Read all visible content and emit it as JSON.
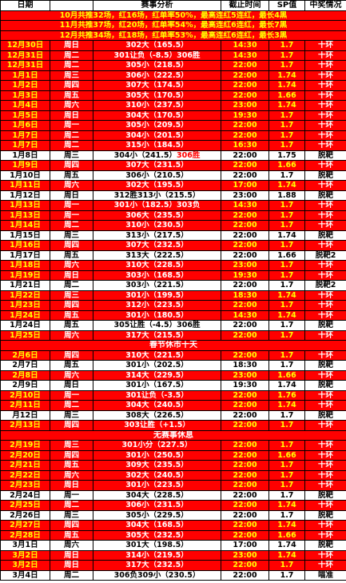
{
  "headers": [
    "日期",
    "",
    "赛事分析",
    "截止时间",
    "SP值",
    "中奖情况"
  ],
  "summaries": [
    "10月共推32场，红16场，红单率50%，最高连红5连红，最长4黑",
    "11月共推37场，红20场，红单率54%，最高连红6连红，最长7黑",
    "12月共推34场，红18场，红单率53%，最高连红6连红，最长3黑"
  ],
  "rows": [
    {
      "date": "12月30日",
      "day": "周日",
      "pick": "302大（165.5）",
      "time": "14:30",
      "sp": "1.7",
      "result": "十环",
      "hit": true
    },
    {
      "date": "12月31日",
      "day": "周二",
      "pick": "301让负（-8.5）306胜",
      "time": "14:30",
      "sp": "1.7",
      "result": "十环",
      "hit": true
    },
    {
      "date": "12月31日",
      "day": "周二",
      "pick": "305小（218.5）",
      "time": "22:00",
      "sp": "1.7",
      "result": "十环",
      "hit": true
    },
    {
      "date": "1月1日",
      "day": "周三",
      "pick": "306小（222.5）",
      "time": "22:00",
      "sp": "1.74",
      "result": "十环",
      "hit": true
    },
    {
      "date": "1月2日",
      "day": "周四",
      "pick": "307大（174.5）",
      "time": "22:00",
      "sp": "1.74",
      "result": "十环",
      "hit": true
    },
    {
      "date": "1月3日",
      "day": "周五",
      "pick": "305大（170.5）",
      "time": "22:00",
      "sp": "1.66",
      "result": "十环",
      "hit": true
    },
    {
      "date": "1月4日",
      "day": "周六",
      "pick": "310小（237.5）",
      "time": "23:00",
      "sp": "1.74",
      "result": "十环",
      "hit": true
    },
    {
      "date": "1月5日",
      "day": "周日",
      "pick": "304大（170.5）",
      "time": "19:30",
      "sp": "1.7",
      "result": "十环",
      "hit": true
    },
    {
      "date": "1月6日",
      "day": "周一",
      "pick": "305小（209.5）",
      "time": "22:00",
      "sp": "1.7",
      "result": "十环",
      "hit": true
    },
    {
      "date": "1月7日",
      "day": "周二",
      "pick": "304小（201.5）",
      "time": "22:00",
      "sp": "1.7",
      "result": "十环",
      "hit": true
    },
    {
      "date": "1月7日",
      "day": "周二",
      "pick": "315小（184.5）",
      "time": "16:30",
      "sp": "1.7",
      "result": "十环",
      "hit": true
    },
    {
      "date": "1月8日",
      "day": "周三",
      "pick": "304小（241.5）",
      "pickExtra": "306胜",
      "time": "22:00",
      "sp": "1.75",
      "result": "脱靶",
      "hit": false
    },
    {
      "date": "1月9日",
      "day": "周四",
      "pick": "307大（231.5）",
      "time": "22:00",
      "sp": "1.66",
      "result": "十环",
      "hit": true
    },
    {
      "date": "1月10日",
      "day": "周五",
      "pick": "306小（210.5）",
      "time": "22:00",
      "sp": "1.7",
      "result": "脱靶",
      "hit": false
    },
    {
      "date": "1月11日",
      "day": "周六",
      "pick": "302大（195.5）",
      "time": "17:00",
      "sp": "1.74",
      "result": "十环",
      "hit": true
    },
    {
      "date": "1月12日",
      "day": "周日",
      "pick": "312胜313小（215.5）",
      "time": "23:00",
      "sp": "1.88",
      "result": "脱靶",
      "hit": false
    },
    {
      "date": "1月13日",
      "day": "周一",
      "pick": "301小（182.5）303负",
      "time": "14:30",
      "sp": "1.7",
      "result": "十环",
      "hit": true
    },
    {
      "date": "1月13日",
      "day": "周一",
      "pick": "306大（235.5）",
      "time": "22:00",
      "sp": "1.7",
      "result": "十环",
      "hit": true
    },
    {
      "date": "1月14日",
      "day": "周二",
      "pick": "310小（230.5）",
      "time": "22:00",
      "sp": "1.7",
      "result": "十环",
      "hit": true
    },
    {
      "date": "1月15日",
      "day": "周三",
      "pick": "313小（217.5）",
      "time": "22:00",
      "sp": "1.74",
      "result": "脱靶",
      "hit": false
    },
    {
      "date": "1月16日",
      "day": "周四",
      "pick": "307大（232.5）",
      "time": "22:00",
      "sp": "1.7",
      "result": "十环",
      "hit": true
    },
    {
      "date": "1月17日",
      "day": "周五",
      "pick": "313大（222.5）",
      "time": "22:00",
      "sp": "1.66",
      "result": "脱靶2",
      "hit": false
    },
    {
      "date": "1月18日",
      "day": "周六",
      "pick": "310大（228.5）",
      "time": "23:00",
      "sp": "1.7",
      "result": "十环",
      "hit": true
    },
    {
      "date": "1月19日",
      "day": "周日",
      "pick": "303小（168.5）",
      "time": "19:30",
      "sp": "1.7",
      "result": "十环",
      "hit": true
    },
    {
      "date": "1月21日",
      "day": "周二",
      "pick": "303小（221.5）",
      "time": "22:00",
      "sp": "1.7",
      "result": "脱靶2",
      "hit": false
    },
    {
      "date": "1月22日",
      "day": "周三",
      "pick": "301小（199.5）",
      "time": "18:30",
      "sp": "1.74",
      "result": "十环",
      "hit": true
    },
    {
      "date": "1月23日",
      "day": "周四",
      "pick": "312小（223.5）",
      "time": "22:00",
      "sp": "1.7",
      "result": "十环",
      "hit": true
    },
    {
      "date": "1月24日",
      "day": "周五",
      "pick": "301小（180.5）",
      "time": "14:30",
      "sp": "1.74",
      "result": "十环",
      "hit": true
    },
    {
      "date": "1月24日",
      "day": "周五",
      "pick": "305让胜（-4.5）306胜",
      "time": "22:00",
      "sp": "1.7",
      "result": "脱靶",
      "hit": false
    },
    {
      "date": "1月25日",
      "day": "周六",
      "pick": "317大（215.5）",
      "time": "22:00",
      "sp": "1.7",
      "result": "十环",
      "hit": true
    },
    {
      "sep": "春节休市十天"
    },
    {
      "date": "2月6日",
      "day": "周四",
      "pick": "310大（221.5）",
      "time": "22:00",
      "sp": "1.7",
      "result": "十环",
      "hit": true
    },
    {
      "date": "2月7日",
      "day": "周五",
      "pick": "301小（202.5）",
      "time": "18:30",
      "sp": "1.7",
      "result": "脱靶",
      "hit": false
    },
    {
      "date": "2月8日",
      "day": "周六",
      "pick": "314大（229.5）",
      "time": "23:00",
      "sp": "1.66",
      "result": "十环",
      "hit": true
    },
    {
      "date": "2月9日",
      "day": "周日",
      "pick": "301小（167.5）",
      "time": "19:30",
      "sp": "1.74",
      "result": "脱靶",
      "hit": false
    },
    {
      "date": "2月10日",
      "day": "周一",
      "pick": "301让负（-3.5）",
      "time": "22:00",
      "sp": "1.76",
      "result": "十环",
      "hit": true
    },
    {
      "date": "2月11日",
      "day": "周二",
      "pick": "304大（240.5）",
      "time": "22:00",
      "sp": "1.74",
      "result": "十环",
      "hit": true
    },
    {
      "date": "月12日",
      "day": "周三",
      "pick": "308大（226.5）",
      "time": "22:00",
      "sp": "1.7",
      "result": "脱靶",
      "hit": false
    },
    {
      "date": "2月13日",
      "day": "周四",
      "pick": "303让胜（+1.5）",
      "time": "22:00",
      "sp": "1.7",
      "result": "十环",
      "hit": true
    },
    {
      "sep": "无赛事休息"
    },
    {
      "date": "2月19日",
      "day": "周三",
      "pick": "301小分（227.5）",
      "time": "22:00",
      "sp": "1.7",
      "result": "十环",
      "hit": true
    },
    {
      "date": "2月20日",
      "day": "周四",
      "pick": "301小（250.5）",
      "time": "22:00",
      "sp": "1.66",
      "result": "十环",
      "hit": true
    },
    {
      "date": "2月21日",
      "day": "周五",
      "pick": "309大（235.5）",
      "time": "22:00",
      "sp": "1.7",
      "result": "十环",
      "hit": true
    },
    {
      "date": "2月22日",
      "day": "周六",
      "pick": "302大（240.5）",
      "time": "22:00",
      "sp": "1.7",
      "result": "十环",
      "hit": true
    },
    {
      "date": "2月23日",
      "day": "周日",
      "pick": "301小（223.5）",
      "time": "22:00",
      "sp": "1.7",
      "result": "十环",
      "hit": true
    },
    {
      "date": "2月24日",
      "day": "周一",
      "pick": "304大（228.5）",
      "time": "22:00",
      "sp": "1.7",
      "result": "脱靶",
      "hit": false
    },
    {
      "date": "2月25日",
      "day": "周二",
      "pick": "306小（231.5）",
      "time": "22:00",
      "sp": "1.74",
      "result": "十环",
      "hit": true
    },
    {
      "date": "2月26日",
      "day": "周三",
      "pick": "305小（229.5）",
      "time": "22:00",
      "sp": "1.7",
      "result": "脱靶",
      "hit": false
    },
    {
      "date": "2月27日",
      "day": "周四",
      "pick": "304大（168.5）",
      "time": "22:00",
      "sp": "1.74",
      "result": "十环",
      "hit": true
    },
    {
      "date": "2月28日",
      "day": "周五",
      "pick": "305大（232.5）",
      "time": "22:00",
      "sp": "1.66",
      "result": "十环",
      "hit": true
    },
    {
      "date": "3月1日",
      "day": "周六",
      "pick": "301大（198.5）",
      "time": "17:00",
      "sp": "1.74",
      "result": "脱靶",
      "hit": false
    },
    {
      "date": "3月2日",
      "day": "周日",
      "pick": "314小（219.5）",
      "time": "23:00",
      "sp": "1.74",
      "result": "十环",
      "hit": true
    },
    {
      "date": "3月2日",
      "day": "周日",
      "pick": "317大（232.5）",
      "time": "22:00",
      "sp": "1.7",
      "result": "十环",
      "hit": true
    },
    {
      "date": "3月4日",
      "day": "周二",
      "pick": "306负309小（230.5）",
      "time": "22:00",
      "sp": "1.7",
      "result": "喵准",
      "hit": false
    }
  ]
}
